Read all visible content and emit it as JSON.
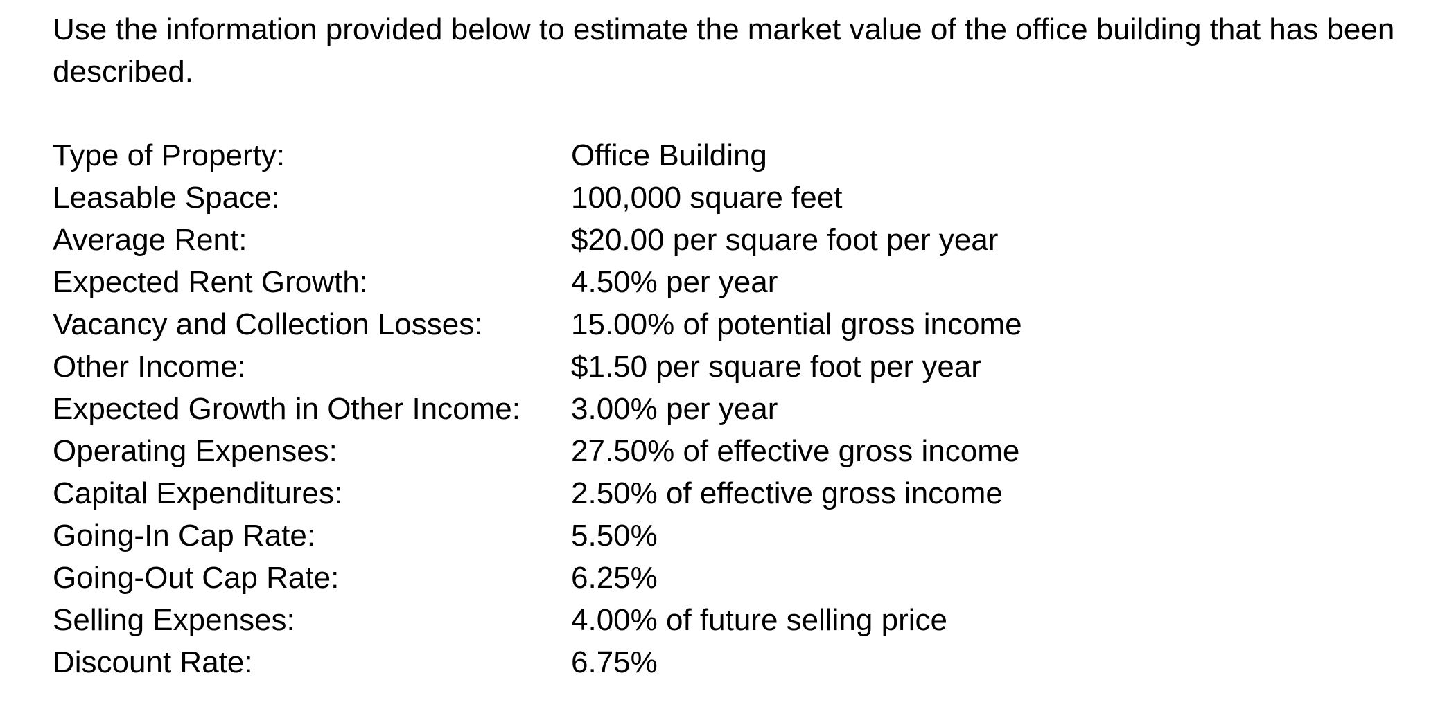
{
  "intro": "Use the information provided below to estimate the market value of the office building that has been described.",
  "properties": [
    {
      "label": "Type of Property:",
      "value": "Office Building"
    },
    {
      "label": "Leasable Space:",
      "value": "100,000 square feet"
    },
    {
      "label": "Average Rent:",
      "value": "$20.00 per square foot per year"
    },
    {
      "label": "Expected Rent Growth:",
      "value": "4.50% per year"
    },
    {
      "label": "Vacancy and Collection Losses:",
      "value": "15.00% of potential gross income"
    },
    {
      "label": "Other Income:",
      "value": "$1.50 per square foot per year"
    },
    {
      "label": "Expected Growth in Other Income:",
      "value": "3.00% per year"
    },
    {
      "label": "Operating Expenses:",
      "value": "27.50% of effective gross income"
    },
    {
      "label": "Capital Expenditures:",
      "value": "2.50% of effective gross income"
    },
    {
      "label": "Going-In Cap Rate:",
      "value": "5.50%"
    },
    {
      "label": "Going-Out Cap Rate:",
      "value": "6.25%"
    },
    {
      "label": "Selling Expenses:",
      "value": "4.00% of future selling price"
    },
    {
      "label": "Discount Rate:",
      "value": "6.75%"
    }
  ]
}
